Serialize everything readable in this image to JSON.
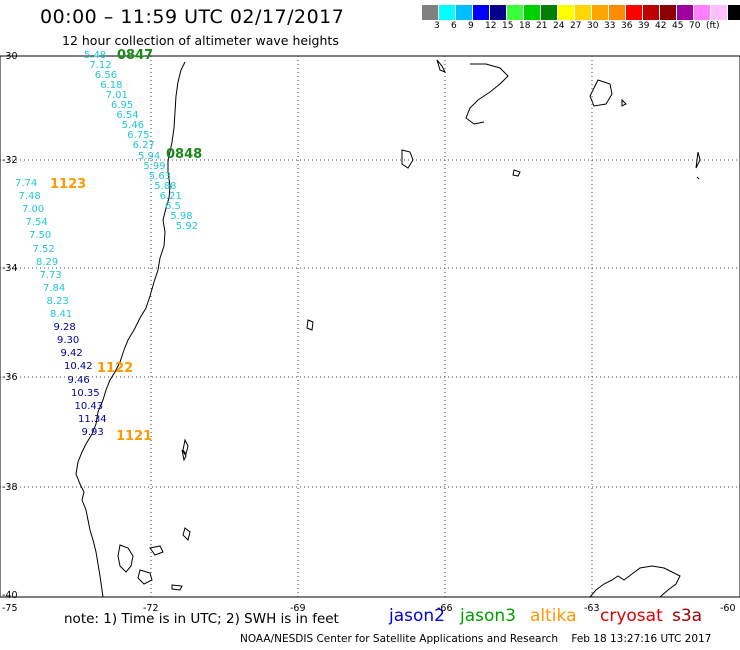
{
  "header": {
    "title": "00:00 – 11:59 UTC 02/17/2017",
    "subtitle": "12 hour collection of altimeter wave heights"
  },
  "legend": {
    "colors": [
      "#808080",
      "#00ffff",
      "#00bfff",
      "#0000ff",
      "#00008b",
      "#3cff3c",
      "#00d000",
      "#008000",
      "#ffff00",
      "#ffd700",
      "#ffa500",
      "#ff8c00",
      "#ff0000",
      "#c00000",
      "#8b0000",
      "#a000a0",
      "#ff80ff",
      "#ffc0ff",
      "#000000"
    ],
    "labels": [
      "3",
      "6",
      "9",
      "12",
      "15",
      "18",
      "21",
      "24",
      "27",
      "30",
      "33",
      "36",
      "39",
      "42",
      "45",
      "70",
      "(ft)"
    ]
  },
  "axes": {
    "lat_labels": [
      "-30",
      "-32",
      "-34",
      "-36",
      "-38",
      "-40"
    ],
    "lon_labels": [
      "-75",
      "-72",
      "-69",
      "-66",
      "-63",
      "-60"
    ]
  },
  "observations": {
    "jason3": {
      "color": "#22c8d8",
      "values": [
        "5.48",
        "7.12",
        "6.56",
        "6.18",
        "7.01",
        "6.95",
        "6.54",
        "5.46",
        "6.75",
        "6.27",
        "5.94",
        "5.99",
        "5.63",
        "5.88",
        "6.21",
        "6.5",
        "5.98",
        "5.92"
      ],
      "times": [
        "0847",
        "0848"
      ]
    },
    "altika": {
      "color_light": "#22c8d8",
      "color_dark": "#00009c",
      "values": [
        "7.74",
        "7.48",
        "7.00",
        "7.54",
        "7.50",
        "7.52",
        "8.29",
        "7.73",
        "7.84",
        "8.23",
        "8.41",
        "9.28",
        "9.30",
        "9.42",
        "10.42",
        "9.46",
        "10.35",
        "10.43",
        "11.34",
        "9.93"
      ],
      "times": [
        "1123",
        "1122",
        "1121"
      ]
    }
  },
  "footer": {
    "note": "note:  1) Time is in UTC;  2) SWH is in feet",
    "satellites": [
      {
        "name": "jason2",
        "color": "#0000e0"
      },
      {
        "name": "jason3",
        "color": "#00a000"
      },
      {
        "name": "altika",
        "color": "#ff9900"
      },
      {
        "name": "cryosat",
        "color": "#e00000"
      },
      {
        "name": "s3a",
        "color": "#a00000"
      }
    ],
    "credit": "NOAA/NESDIS Center for Satellite Applications and Research",
    "timestamp": "Feb 18 13:27:16 UTC 2017"
  },
  "colors": {
    "time_jason3": "#1a8a1a",
    "time_altika": "#ff9900"
  }
}
